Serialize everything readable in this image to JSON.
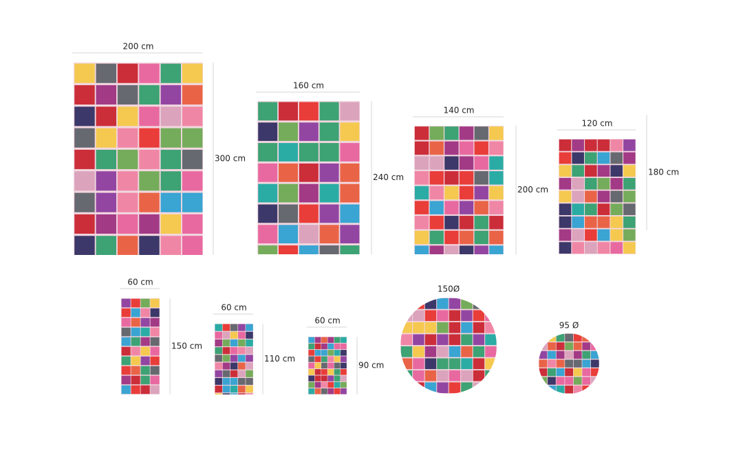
{
  "sizes": [
    {
      "width": "200 cm",
      "height": "300 cm"
    },
    {
      "width": "160 cm",
      "height": "240 cm"
    },
    {
      "width": "140 cm",
      "height": "200 cm"
    },
    {
      "width": "120 cm",
      "height": "180 cm"
    },
    {
      "width": "60 cm",
      "height": "150 cm"
    },
    {
      "width": "60 cm",
      "height": "110 cm"
    },
    {
      "width": "60 cm",
      "height": "90 cm"
    },
    {
      "diameter": "150Ø"
    },
    {
      "diameter": "95 Ø"
    }
  ]
}
